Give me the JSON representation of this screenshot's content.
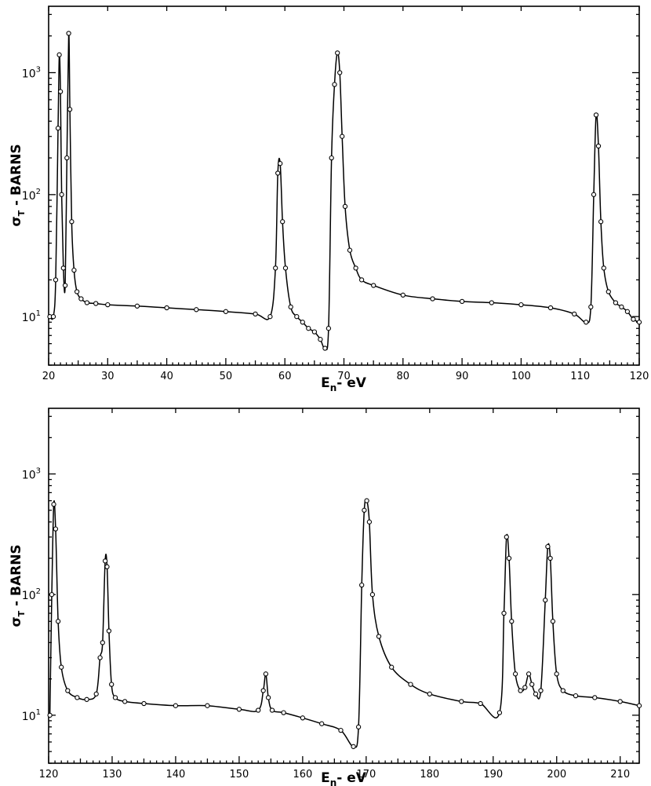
{
  "chart_data": [
    {
      "type": "line",
      "panel": "top",
      "xlabel": "En- eV",
      "ylabel": "σT - BARNS",
      "xlim": [
        20,
        120
      ],
      "ylim": [
        4,
        3500
      ],
      "yscale": "log",
      "x_ticks": [
        20,
        30,
        40,
        50,
        60,
        70,
        80,
        90,
        100,
        110,
        120
      ],
      "y_ticks": [
        {
          "value": 10,
          "base": "10",
          "exp": "1"
        },
        {
          "value": 100,
          "base": "10",
          "exp": "2"
        },
        {
          "value": 1000,
          "base": "10",
          "exp": "3"
        }
      ],
      "grid": false,
      "series": [
        {
          "style": "solid curve with open circle data points",
          "x": [
            20.2,
            20.8,
            21.2,
            21.6,
            21.8,
            22.0,
            22.2,
            22.5,
            22.8,
            23.1,
            23.4,
            23.6,
            23.9,
            24.3,
            24.8,
            25.5,
            26.5,
            28,
            30,
            35,
            40,
            45,
            50,
            55,
            57.5,
            58.4,
            58.8,
            59.2,
            59.6,
            60.1,
            61,
            62,
            63,
            64,
            65,
            66,
            66.8,
            67.4,
            67.9,
            68.4,
            68.9,
            69.3,
            69.7,
            70.2,
            71,
            72,
            73,
            75,
            80,
            85,
            90,
            95,
            100,
            105,
            109,
            111,
            111.8,
            112.3,
            112.7,
            113.1,
            113.5,
            114,
            114.8,
            116,
            117,
            118,
            119,
            120
          ],
          "y": [
            10,
            10,
            20,
            350,
            1400,
            700,
            100,
            25,
            18,
            200,
            2100,
            500,
            60,
            24,
            16,
            14,
            13,
            12.8,
            12.5,
            12.2,
            11.8,
            11.4,
            11,
            10.5,
            10,
            25,
            150,
            180,
            60,
            25,
            12,
            10,
            9,
            8,
            7.5,
            6.5,
            5.5,
            8,
            200,
            800,
            1450,
            1000,
            300,
            80,
            35,
            25,
            20,
            18,
            15,
            14,
            13.3,
            13,
            12.5,
            11.8,
            10.5,
            9,
            12,
            100,
            450,
            250,
            60,
            25,
            16,
            13,
            12,
            11,
            9.5,
            9
          ]
        }
      ]
    },
    {
      "type": "line",
      "panel": "bottom",
      "xlabel": "En- eV",
      "ylabel": "σT - BARNS",
      "xlim": [
        120,
        213
      ],
      "ylim": [
        4,
        3500
      ],
      "yscale": "log",
      "x_ticks": [
        120,
        130,
        140,
        150,
        160,
        170,
        180,
        190,
        200,
        210
      ],
      "y_ticks": [
        {
          "value": 10,
          "base": "10",
          "exp": "1"
        },
        {
          "value": 100,
          "base": "10",
          "exp": "2"
        },
        {
          "value": 1000,
          "base": "10",
          "exp": "3"
        }
      ],
      "grid": false,
      "series": [
        {
          "style": "solid curve with open circle data points",
          "x": [
            120.2,
            120.5,
            120.8,
            121.1,
            121.5,
            122,
            123,
            124.5,
            126,
            127.5,
            128.1,
            128.5,
            128.9,
            129.2,
            129.5,
            129.9,
            130.5,
            132,
            135,
            140,
            145,
            150,
            153,
            153.8,
            154.2,
            154.6,
            155.2,
            157,
            160,
            163,
            166,
            168,
            168.8,
            169.3,
            169.7,
            170.1,
            170.5,
            171,
            172,
            174,
            177,
            180,
            185,
            188,
            191,
            191.7,
            192.1,
            192.5,
            192.9,
            193.5,
            194.3,
            195,
            195.6,
            196.1,
            196.7,
            197.5,
            198.2,
            198.6,
            199,
            199.4,
            200,
            201,
            203,
            206,
            210,
            213
          ],
          "y": [
            10,
            100,
            560,
            350,
            60,
            25,
            16,
            14,
            13.5,
            15,
            30,
            40,
            190,
            170,
            50,
            18,
            14,
            13,
            12.5,
            12,
            12,
            11.2,
            11,
            16,
            22,
            14,
            11,
            10.5,
            9.5,
            8.5,
            7.5,
            5.5,
            8,
            120,
            500,
            600,
            400,
            100,
            45,
            25,
            18,
            15,
            13,
            12.5,
            10.5,
            70,
            300,
            200,
            60,
            22,
            16,
            17,
            22,
            18,
            15,
            16,
            90,
            250,
            200,
            60,
            22,
            16,
            14.5,
            14,
            13,
            12
          ]
        }
      ]
    }
  ]
}
